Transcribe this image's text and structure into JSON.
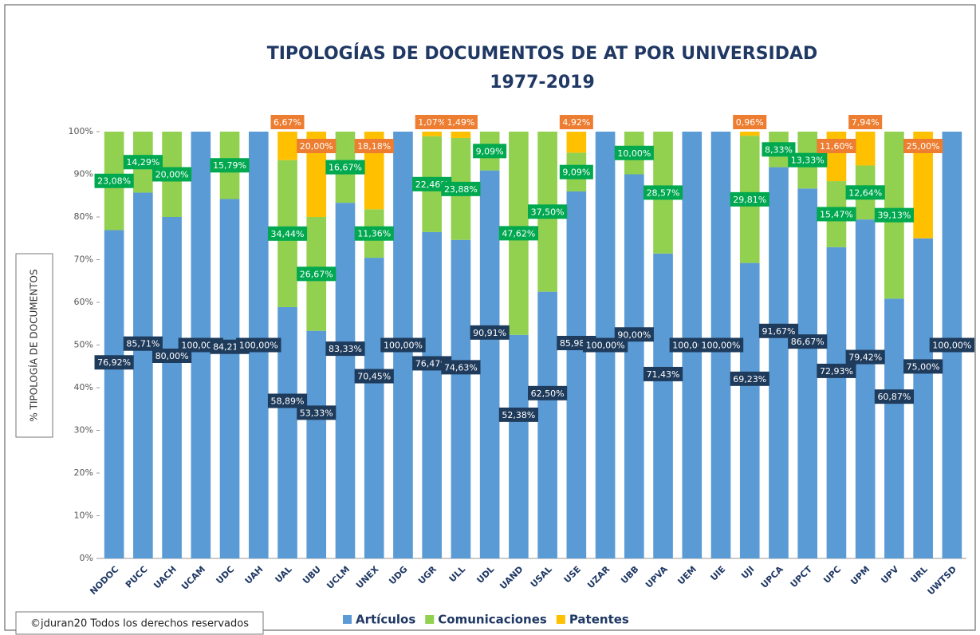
{
  "chart_data": {
    "type": "stacked_bar",
    "title": "TIPOLOGÍAS DE DOCUMENTOS DE AT POR UNIVERSIDAD",
    "subtitle": "1977-2019",
    "y_label": "% TIPOLOGÍA DE DOCUMENTOS",
    "footer": "©jduran20 Todos los derechos reservados",
    "categories": [
      "NODOC",
      "PUCC",
      "UACH",
      "UCAM",
      "UDC",
      "UAH",
      "UAL",
      "UBU",
      "UCLM",
      "UNEX",
      "UDG",
      "UGR",
      "ULL",
      "UDL",
      "UAND",
      "USAL",
      "USE",
      "UZAR",
      "UBB",
      "UPVA",
      "UEM",
      "UIE",
      "UJI",
      "UPCA",
      "UPCT",
      "UPC",
      "UPM",
      "UPV",
      "URL",
      "UWTSD"
    ],
    "series": [
      {
        "name": "Artículos",
        "color": "#5b9bd5",
        "label_color": "#1f3b5c",
        "values": [
          76.92,
          85.71,
          80.0,
          100,
          84.21,
          100,
          58.89,
          53.33,
          83.33,
          70.45,
          100,
          76.47,
          74.63,
          90.91,
          52.38,
          62.5,
          85.98,
          100,
          90.0,
          71.43,
          100,
          100,
          69.23,
          91.67,
          86.67,
          72.93,
          79.42,
          60.87,
          75.0,
          100
        ],
        "value_labels": [
          "76,92%",
          "85,71%",
          "80,00%",
          "100,00%",
          "84,21%",
          "100,00%",
          "58,89%",
          "53,33%",
          "83,33%",
          "70,45%",
          "100,00%",
          "76,47%",
          "74,63%",
          "90,91%",
          "52,38%",
          "62,50%",
          "85,98%",
          "100,00%",
          "90,00%",
          "71,43%",
          "100,00%",
          "100,00%",
          "69,23%",
          "91,67%",
          "86,67%",
          "72,93%",
          "79,42%",
          "60,87%",
          "75,00%",
          "100,00%"
        ]
      },
      {
        "name": "Comunicaciones",
        "color": "#92d050",
        "label_color": "#00a84f",
        "values": [
          23.08,
          14.29,
          20.0,
          0,
          15.79,
          0,
          34.44,
          26.67,
          16.67,
          11.36,
          0,
          22.46,
          23.88,
          9.09,
          47.62,
          37.5,
          9.09,
          0,
          10.0,
          28.57,
          0,
          0,
          29.81,
          8.33,
          13.33,
          15.47,
          12.64,
          39.13,
          0,
          0
        ],
        "value_labels": [
          "23,08%",
          "14,29%",
          "20,00%",
          null,
          "15,79%",
          null,
          "34,44%",
          "26,67%",
          "16,67%",
          "11,36%",
          null,
          "22,46%",
          "23,88%",
          "9,09%",
          "47,62%",
          "37,50%",
          "9,09%",
          null,
          "10,00%",
          "28,57%",
          null,
          null,
          "29,81%",
          "8,33%",
          "13,33%",
          "15,47%",
          "12,64%",
          "39,13%",
          null,
          null
        ]
      },
      {
        "name": "Patentes",
        "color": "#ffc000",
        "label_color": "#ed7d31",
        "values": [
          0,
          0,
          0,
          0,
          0,
          0,
          6.67,
          20.0,
          0,
          18.18,
          0,
          1.07,
          1.49,
          0,
          0,
          0,
          4.92,
          0,
          0,
          0,
          0,
          0,
          0.96,
          0,
          0,
          11.6,
          7.94,
          0,
          25.0,
          0
        ],
        "value_labels": [
          null,
          null,
          null,
          null,
          null,
          null,
          "6,67%",
          "20,00%",
          null,
          "18,18%",
          null,
          "1,07%",
          "1,49%",
          null,
          null,
          null,
          "4,92%",
          null,
          null,
          null,
          null,
          null,
          "0,96%",
          null,
          null,
          "11,60%",
          "7,94%",
          null,
          "25,00%",
          null
        ]
      }
    ],
    "ylim": [
      0,
      100
    ],
    "yticks": [
      {
        "value": 0,
        "label": "0%"
      },
      {
        "value": 10,
        "label": "10%"
      },
      {
        "value": 20,
        "label": "20%"
      },
      {
        "value": 30,
        "label": "30%"
      },
      {
        "value": 40,
        "label": "40%"
      },
      {
        "value": 50,
        "label": "50%"
      },
      {
        "value": 60,
        "label": "60%"
      },
      {
        "value": 70,
        "label": "70%"
      },
      {
        "value": 80,
        "label": "80%"
      },
      {
        "value": 90,
        "label": "90%"
      },
      {
        "value": 100,
        "label": "100%"
      }
    ],
    "legend": "bottom"
  }
}
